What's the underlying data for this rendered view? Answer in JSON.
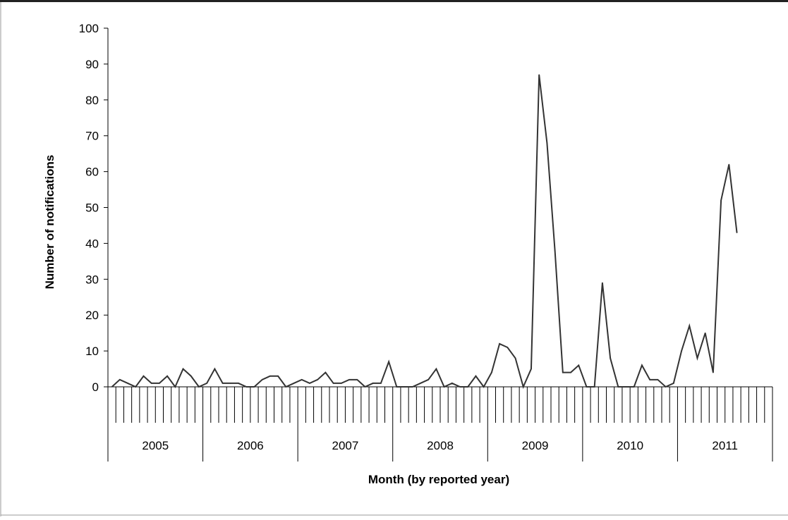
{
  "chart_data": {
    "type": "line",
    "title": "",
    "xlabel": "Month (by reported year)",
    "ylabel": "Number of notifications",
    "ylim": [
      0,
      100
    ],
    "yticks": [
      0,
      10,
      20,
      30,
      40,
      50,
      60,
      70,
      80,
      90,
      100
    ],
    "grid": false,
    "legend": "none",
    "line_color": "#333333",
    "years": [
      "2005",
      "2006",
      "2007",
      "2008",
      "2009",
      "2010",
      "2011"
    ],
    "months_per_year": 12,
    "series": [
      {
        "values": [
          0,
          2,
          1,
          0,
          3,
          1,
          1,
          3,
          0,
          5,
          3,
          0,
          1,
          5,
          1,
          1,
          1,
          0,
          0,
          2,
          3,
          3,
          0,
          1,
          2,
          1,
          2,
          4,
          1,
          1,
          2,
          2,
          0,
          1,
          1,
          7,
          0,
          0,
          0,
          1,
          2,
          5,
          0,
          1,
          0,
          0,
          3,
          0,
          4,
          12,
          11,
          8,
          0,
          5,
          87,
          68,
          38,
          4,
          4,
          6,
          0,
          0,
          29,
          8,
          0,
          0,
          0,
          6,
          2,
          2,
          0,
          1,
          10,
          17,
          8,
          15,
          4,
          52,
          62,
          43
        ]
      }
    ]
  }
}
